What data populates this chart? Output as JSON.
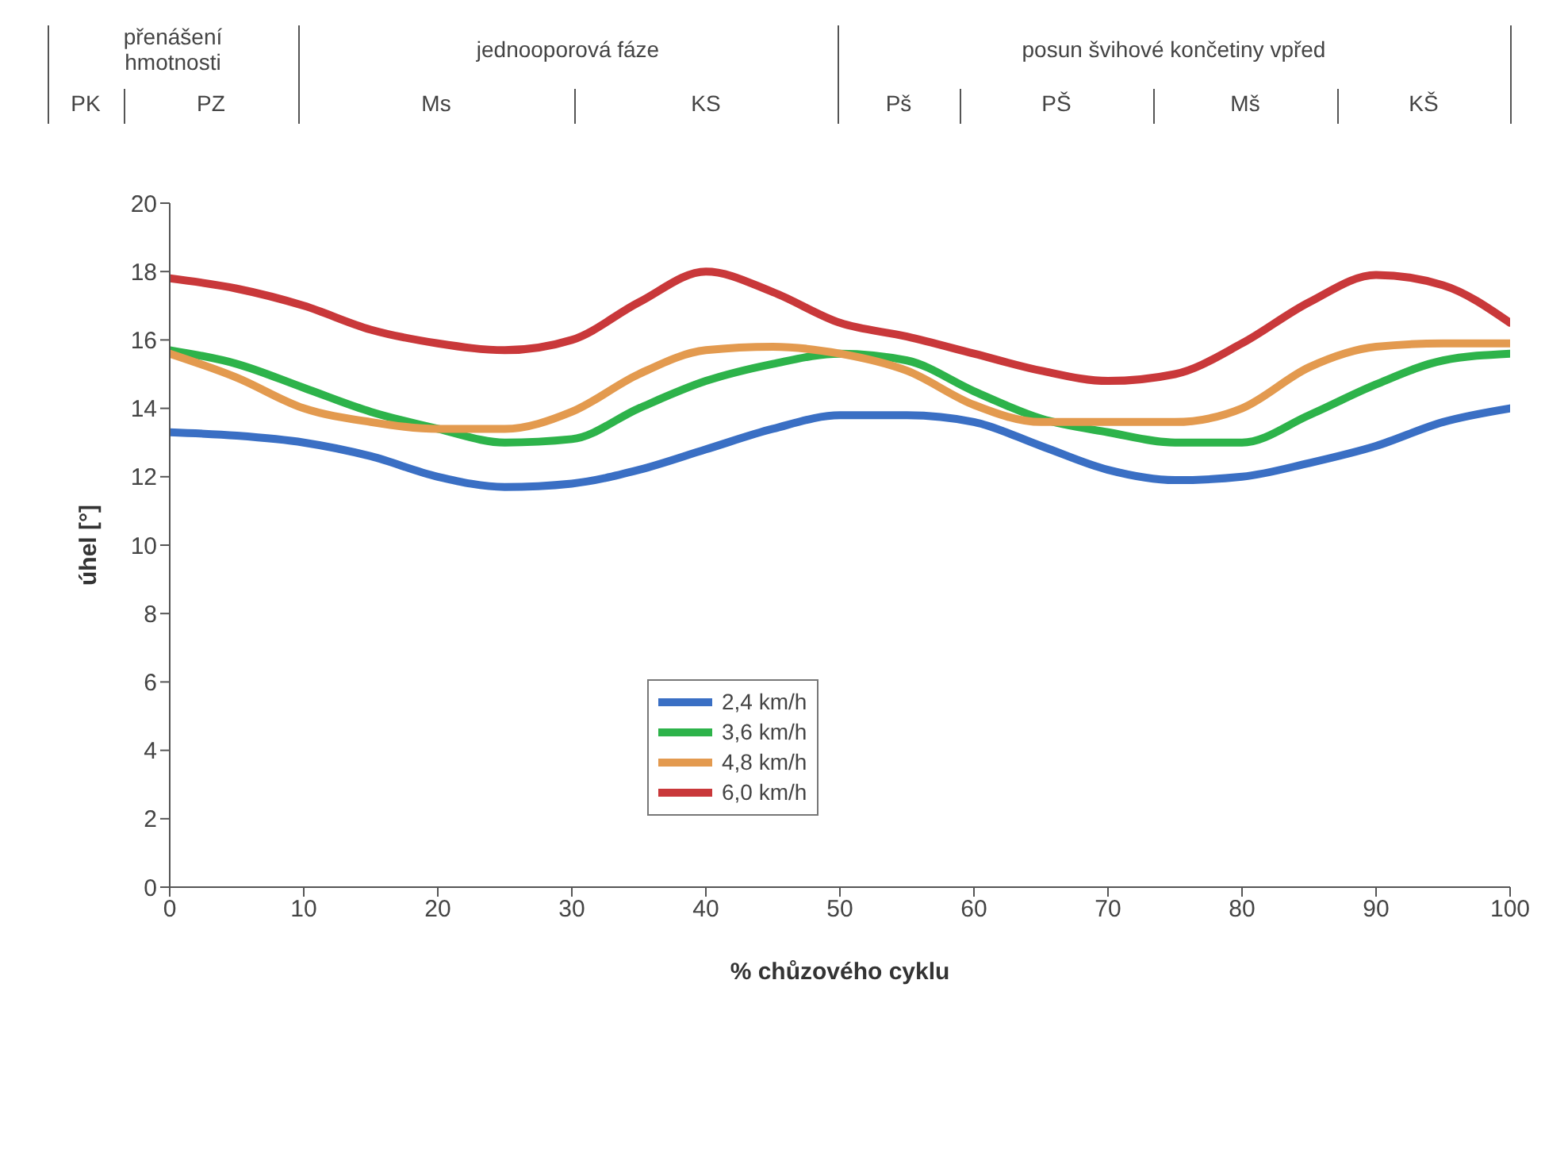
{
  "chart_data": {
    "type": "line",
    "xlabel": "% chůzového cyklu",
    "ylabel": "úhel [°]",
    "annotations": [
      "přenášení hmotnosti",
      "jednooporová fáze",
      "posun švihové končetiny vpřed",
      "PK",
      "PZ",
      "Ms",
      "KS",
      "Pš",
      "PŠ",
      "Mš",
      "KŠ"
    ],
    "x": [
      0,
      5,
      10,
      15,
      20,
      25,
      30,
      35,
      40,
      45,
      50,
      55,
      60,
      65,
      70,
      75,
      80,
      85,
      90,
      95,
      100
    ],
    "series": [
      {
        "name": "2,4 km/h",
        "color": "#3a6fc4",
        "values": [
          13.3,
          13.2,
          13.0,
          12.6,
          12.0,
          11.7,
          11.8,
          12.2,
          12.8,
          13.4,
          13.8,
          13.8,
          13.6,
          12.9,
          12.2,
          11.9,
          12.0,
          12.4,
          12.9,
          13.6,
          14.0
        ]
      },
      {
        "name": "3,6 km/h",
        "color": "#2db34a",
        "values": [
          15.7,
          15.3,
          14.6,
          13.9,
          13.4,
          13.0,
          13.1,
          14.0,
          14.8,
          15.3,
          15.6,
          15.4,
          14.5,
          13.7,
          13.3,
          13.0,
          13.0,
          13.8,
          14.7,
          15.4,
          15.6
        ]
      },
      {
        "name": "4,8 km/h",
        "color": "#e39a4f",
        "values": [
          15.6,
          14.9,
          14.0,
          13.6,
          13.4,
          13.4,
          13.9,
          15.0,
          15.7,
          15.8,
          15.6,
          15.1,
          14.1,
          13.6,
          13.6,
          13.6,
          14.0,
          15.2,
          15.8,
          15.9,
          15.9
        ]
      },
      {
        "name": "6,0 km/h",
        "color": "#c9383a",
        "values": [
          17.8,
          17.5,
          17.0,
          16.3,
          15.9,
          15.7,
          16.0,
          17.1,
          18.0,
          17.4,
          16.5,
          16.1,
          15.6,
          15.1,
          14.8,
          15.0,
          15.9,
          17.1,
          17.9,
          17.6,
          16.5
        ]
      }
    ],
    "xlim": [
      0,
      100
    ],
    "xticks": [
      0,
      10,
      20,
      30,
      40,
      50,
      60,
      70,
      80,
      90,
      100
    ],
    "ylim": [
      0,
      20
    ],
    "yticks": [
      0,
      2,
      4,
      6,
      8,
      10,
      12,
      14,
      16,
      18,
      20
    ],
    "grid": false,
    "legend": "bottom",
    "marker": "none",
    "line_style": "solid"
  }
}
